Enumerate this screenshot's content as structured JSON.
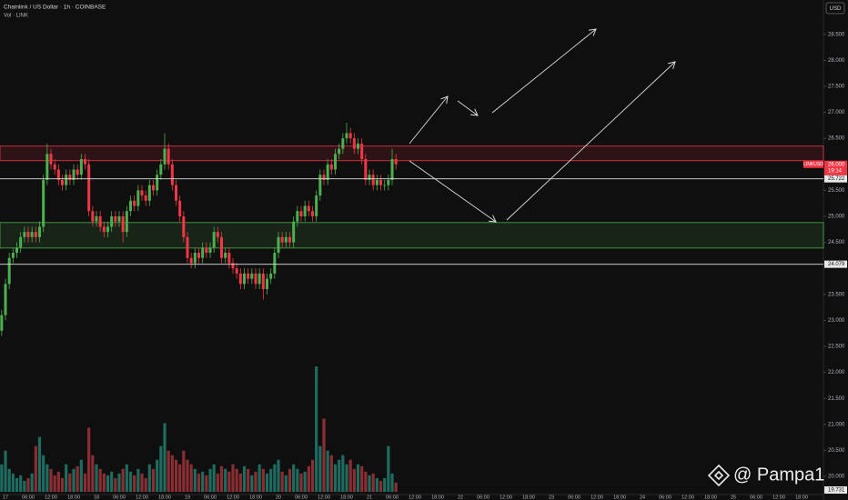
{
  "chart_data": {
    "type": "candlestick",
    "title": "Chainlink / US Dollar · 1h · COINBASE",
    "volume_label": "Vol · LINK",
    "currency": "USD",
    "watermark": "@ Pampa1",
    "up_color": "#4caf50",
    "down_color": "#f23645",
    "volume_up_color": "#1e6b5f",
    "volume_down_color": "#8a2e34",
    "ylim": [
      19.65,
      29.16
    ],
    "yticks": [
      {
        "value": 28.5,
        "label": "28.500"
      },
      {
        "value": 28,
        "label": "28.000"
      },
      {
        "value": 27.5,
        "label": "27.500"
      },
      {
        "value": 27,
        "label": "27.000"
      },
      {
        "value": 26.5,
        "label": "26.500"
      },
      {
        "value": 25.5,
        "label": "25.500"
      },
      {
        "value": 25,
        "label": "25.000"
      },
      {
        "value": 24.5,
        "label": "24.500"
      },
      {
        "value": 23.5,
        "label": "23.500"
      },
      {
        "value": 23,
        "label": "23.000"
      },
      {
        "value": 22.5,
        "label": "22.500"
      },
      {
        "value": 22,
        "label": "22.000"
      },
      {
        "value": 21.5,
        "label": "21.500"
      },
      {
        "value": 21,
        "label": "21.000"
      },
      {
        "value": 20.5,
        "label": "20.500"
      },
      {
        "value": 20,
        "label": "20.000"
      }
    ],
    "x_labels": [
      "17",
      "06:00",
      "12:00",
      "18:00",
      "18",
      "06:00",
      "12:00",
      "18:00",
      "19",
      "06:00",
      "12:00",
      "18:00",
      "20",
      "06:00",
      "12:00",
      "18:00",
      "21",
      "06:00",
      "12:00",
      "18:00",
      "22",
      "06:00",
      "12:00",
      "18:00",
      "23",
      "06:00",
      "12:00",
      "18:00",
      "24",
      "06:00",
      "12:00",
      "18:00",
      "25",
      "06:00",
      "12:00",
      "18:00"
    ],
    "open": [
      22.8,
      23.1,
      23.7,
      24.2,
      24.3,
      24.4,
      24.6,
      24.7,
      24.6,
      24.7,
      24.6,
      24.8,
      25.7,
      26.2,
      26.0,
      25.9,
      25.7,
      25.6,
      25.8,
      25.7,
      25.9,
      25.8,
      26.1,
      26.0,
      25.1,
      24.9,
      25.0,
      24.8,
      24.7,
      24.8,
      25.0,
      24.9,
      25.0,
      24.7,
      25.1,
      25.3,
      25.2,
      25.5,
      25.4,
      25.3,
      25.6,
      25.5,
      25.8,
      26.0,
      26.3,
      26.0,
      25.6,
      25.3,
      25.0,
      24.6,
      24.2,
      24.1,
      24.3,
      24.2,
      24.4,
      24.3,
      24.4,
      24.7,
      24.6,
      24.2,
      24.3,
      24.1,
      24.0,
      23.9,
      23.7,
      23.9,
      23.8,
      23.9,
      23.7,
      23.9,
      23.6,
      23.8,
      23.9,
      24.3,
      24.6,
      24.5,
      24.6,
      24.5,
      24.9,
      25.1,
      25.0,
      25.2,
      25.1,
      25.0,
      25.4,
      25.8,
      25.7,
      26.0,
      25.9,
      26.2,
      26.3,
      26.5,
      26.6,
      26.5,
      26.3,
      26.4,
      26.1,
      25.7,
      25.8,
      25.6,
      25.7,
      25.6,
      25.6,
      25.7,
      26.1
    ],
    "high": [
      23.2,
      23.8,
      24.3,
      24.4,
      24.5,
      24.7,
      24.8,
      24.8,
      24.8,
      24.8,
      24.9,
      25.8,
      26.4,
      26.3,
      26.1,
      26.0,
      25.8,
      25.9,
      25.9,
      26.0,
      26.0,
      26.2,
      26.2,
      26.1,
      25.2,
      25.1,
      25.1,
      24.9,
      24.9,
      25.1,
      25.1,
      25.1,
      25.1,
      25.2,
      25.4,
      25.4,
      25.6,
      25.6,
      25.5,
      25.7,
      25.7,
      25.9,
      26.1,
      26.6,
      26.4,
      26.1,
      25.7,
      25.4,
      25.1,
      24.7,
      24.3,
      24.4,
      24.4,
      24.5,
      24.5,
      24.5,
      24.8,
      24.8,
      24.7,
      24.4,
      24.4,
      24.2,
      24.1,
      24.0,
      24.0,
      24.0,
      24.0,
      24.0,
      24.0,
      24.0,
      23.9,
      24.0,
      24.4,
      24.7,
      24.7,
      24.7,
      24.7,
      25.0,
      25.2,
      25.2,
      25.3,
      25.3,
      25.2,
      25.5,
      25.9,
      25.9,
      26.1,
      26.1,
      26.3,
      26.4,
      26.6,
      26.8,
      26.7,
      26.6,
      26.5,
      26.5,
      26.2,
      25.9,
      25.9,
      25.8,
      25.8,
      25.7,
      25.8,
      26.3,
      26.2
    ],
    "low": [
      22.7,
      23.0,
      23.6,
      24.1,
      24.2,
      24.3,
      24.5,
      24.5,
      24.5,
      24.5,
      24.5,
      24.7,
      25.6,
      25.9,
      25.8,
      25.6,
      25.5,
      25.5,
      25.6,
      25.6,
      25.7,
      25.7,
      25.9,
      25.0,
      24.8,
      24.8,
      24.7,
      24.6,
      24.6,
      24.7,
      24.8,
      24.8,
      24.5,
      24.6,
      25.0,
      25.1,
      25.1,
      25.3,
      25.2,
      25.2,
      25.4,
      25.4,
      25.7,
      25.9,
      25.9,
      25.5,
      25.2,
      24.9,
      24.5,
      24.1,
      24.0,
      24.0,
      24.1,
      24.1,
      24.2,
      24.2,
      24.3,
      24.5,
      24.1,
      24.1,
      24.0,
      23.9,
      23.8,
      23.6,
      23.6,
      23.7,
      23.7,
      23.6,
      23.6,
      23.4,
      23.5,
      23.7,
      23.8,
      24.2,
      24.4,
      24.4,
      24.4,
      24.4,
      24.8,
      24.9,
      24.9,
      25.0,
      24.9,
      24.9,
      25.3,
      25.6,
      25.6,
      25.8,
      25.8,
      26.1,
      26.2,
      26.4,
      26.4,
      26.2,
      26.2,
      26.0,
      25.6,
      25.6,
      25.5,
      25.5,
      25.5,
      25.5,
      25.5,
      25.6,
      25.9
    ],
    "close": [
      23.1,
      23.7,
      24.2,
      24.3,
      24.4,
      24.6,
      24.7,
      24.6,
      24.7,
      24.6,
      24.8,
      25.7,
      26.2,
      26.0,
      25.9,
      25.7,
      25.6,
      25.8,
      25.7,
      25.9,
      25.8,
      26.1,
      26.0,
      25.1,
      24.9,
      25.0,
      24.8,
      24.7,
      24.8,
      25.0,
      24.9,
      25.0,
      24.7,
      25.1,
      25.3,
      25.2,
      25.5,
      25.4,
      25.3,
      25.6,
      25.5,
      25.8,
      26.0,
      26.3,
      26.0,
      25.6,
      25.3,
      25.0,
      24.6,
      24.2,
      24.1,
      24.3,
      24.2,
      24.4,
      24.3,
      24.4,
      24.7,
      24.6,
      24.2,
      24.3,
      24.1,
      24.0,
      23.9,
      23.7,
      23.9,
      23.8,
      23.9,
      23.7,
      23.9,
      23.6,
      23.8,
      23.9,
      24.3,
      24.6,
      24.5,
      24.6,
      24.5,
      24.9,
      25.1,
      25.0,
      25.2,
      25.1,
      25.0,
      25.4,
      25.8,
      25.7,
      26.0,
      25.9,
      26.2,
      26.3,
      26.5,
      26.6,
      26.5,
      26.3,
      26.4,
      26.1,
      25.7,
      25.8,
      25.6,
      25.7,
      25.6,
      25.6,
      25.7,
      26.1,
      26.0
    ],
    "volume": [
      30,
      45,
      25,
      20,
      15,
      18,
      12,
      15,
      20,
      50,
      60,
      40,
      30,
      25,
      18,
      22,
      15,
      30,
      20,
      25,
      28,
      35,
      20,
      70,
      40,
      30,
      25,
      20,
      18,
      22,
      15,
      20,
      25,
      30,
      22,
      18,
      25,
      20,
      15,
      30,
      25,
      35,
      50,
      75,
      45,
      40,
      35,
      30,
      45,
      35,
      30,
      25,
      20,
      22,
      18,
      25,
      30,
      20,
      28,
      25,
      22,
      30,
      25,
      20,
      28,
      25,
      18,
      22,
      30,
      25,
      20,
      25,
      30,
      35,
      22,
      18,
      25,
      30,
      25,
      20,
      22,
      28,
      35,
      137,
      50,
      80,
      45,
      40,
      30,
      35,
      40,
      30,
      35,
      25,
      30,
      28,
      22,
      18,
      20,
      15,
      12,
      15,
      50,
      20,
      10
    ],
    "zones": [
      {
        "from": 26.07,
        "to": 26.35,
        "color": "#f23645"
      },
      {
        "from": 24.39,
        "to": 24.88,
        "color": "#4caf50"
      }
    ],
    "levels": [
      {
        "value": 25.722,
        "label": "25.722"
      },
      {
        "value": 24.079,
        "label": "24.079"
      }
    ],
    "price_label": {
      "name": "LINKUSD",
      "value": 26.0,
      "label": "26.000",
      "countdown": "19:14"
    },
    "bottom_label": {
      "value": 19.731,
      "label": "19.731"
    },
    "grid": false
  }
}
